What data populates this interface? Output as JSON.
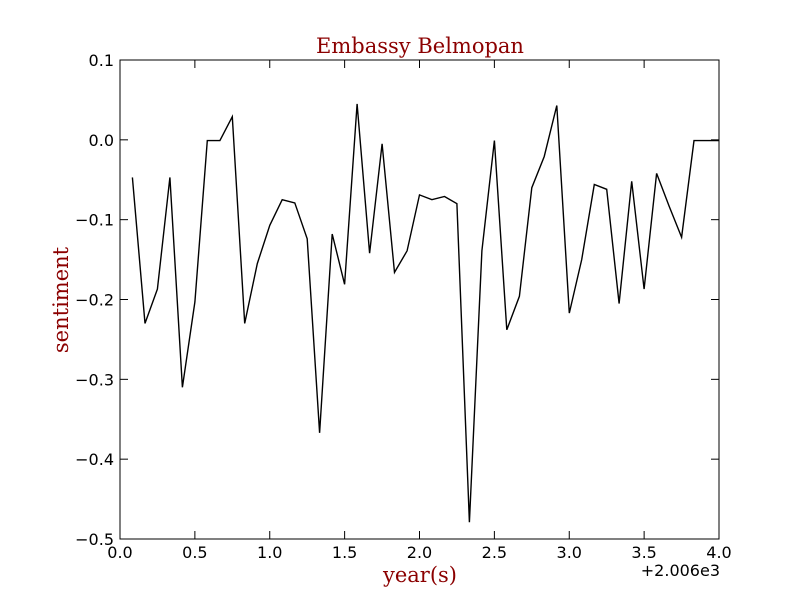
{
  "chart_data": {
    "type": "line",
    "title": "Embassy Belmopan",
    "xlabel": "year(s)",
    "ylabel": "sentiment",
    "x_offset_label": "+2.006e3",
    "xlim": [
      0.0,
      4.0
    ],
    "ylim": [
      -0.5,
      0.1
    ],
    "xticks": [
      0.0,
      0.5,
      1.0,
      1.5,
      2.0,
      2.5,
      3.0,
      3.5,
      4.0
    ],
    "xtick_labels": [
      "0.0",
      "0.5",
      "1.0",
      "1.5",
      "2.0",
      "2.5",
      "3.0",
      "3.5",
      "4.0"
    ],
    "yticks": [
      0.1,
      0.0,
      -0.1,
      -0.2,
      -0.3,
      -0.4,
      -0.5
    ],
    "ytick_labels": [
      "0.1",
      "0.0",
      "−0.1",
      "−0.2",
      "−0.3",
      "−0.4",
      "−0.5"
    ],
    "grid": false,
    "line_color": "#000000",
    "title_color": "#8b0000",
    "series": [
      {
        "name": "sentiment",
        "x": [
          0.083,
          0.167,
          0.25,
          0.333,
          0.417,
          0.5,
          0.583,
          0.667,
          0.75,
          0.833,
          0.917,
          1.0,
          1.083,
          1.167,
          1.25,
          1.333,
          1.417,
          1.5,
          1.583,
          1.667,
          1.75,
          1.833,
          1.917,
          2.0,
          2.083,
          2.167,
          2.25,
          2.333,
          2.417,
          2.5,
          2.583,
          2.667,
          2.75,
          2.833,
          2.917,
          3.0,
          3.083,
          3.167,
          3.25,
          3.333,
          3.417,
          3.5,
          3.583,
          3.667,
          3.75,
          3.833,
          3.917,
          4.0
        ],
        "values": [
          -0.047,
          -0.23,
          -0.187,
          -0.047,
          -0.31,
          -0.203,
          -0.001,
          -0.001,
          0.029,
          -0.23,
          -0.155,
          -0.107,
          -0.075,
          -0.079,
          -0.124,
          -0.367,
          -0.118,
          -0.181,
          0.045,
          -0.142,
          -0.005,
          -0.166,
          -0.139,
          -0.069,
          -0.075,
          -0.071,
          -0.08,
          -0.479,
          -0.139,
          -0.001,
          -0.238,
          -0.196,
          -0.06,
          -0.021,
          0.043,
          -0.217,
          -0.15,
          -0.056,
          -0.062,
          -0.205,
          -0.052,
          -0.187,
          -0.042,
          -0.083,
          -0.122,
          -0.001,
          -0.001,
          -0.001
        ]
      }
    ]
  }
}
